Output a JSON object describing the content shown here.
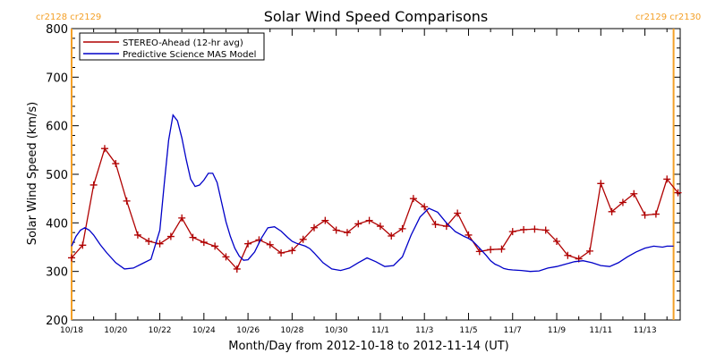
{
  "chart_data": {
    "type": "line",
    "title": "Solar Wind Speed Comparisons",
    "xlabel": "Month/Day from 2012-10-18 to 2012-11-14 (UT)",
    "ylabel": "Solar Wind Speed (km/s)",
    "xlim": [
      0,
      27.6
    ],
    "ylim": [
      200,
      800
    ],
    "x_unit": "days since 10/18 00:00 UT",
    "x_ticks": [
      0,
      2,
      4,
      6,
      8,
      10,
      12,
      14,
      16,
      18,
      20,
      22,
      24,
      26
    ],
    "x_tick_labels": [
      "10/18",
      "10/20",
      "10/22",
      "10/24",
      "10/26",
      "10/28",
      "10/30",
      "11/1",
      "11/3",
      "11/5",
      "11/7",
      "11/9",
      "11/11",
      "11/13"
    ],
    "y_ticks": [
      200,
      300,
      400,
      500,
      600,
      700,
      800
    ],
    "y_tick_labels": [
      "200",
      "300",
      "400",
      "500",
      "600",
      "700",
      "800"
    ],
    "legend_position": "top-left",
    "carrington_markers": [
      {
        "x": 0.0,
        "label": "cr2128 cr2129",
        "color": "#f4a027"
      },
      {
        "x": 27.3,
        "label": "cr2129 cr2130",
        "color": "#f4a027"
      }
    ],
    "series": [
      {
        "name": "STEREO-Ahead (12-hr avg)",
        "color": "#b00000",
        "marker": "plus",
        "x": [
          0.0,
          0.5,
          1.0,
          1.5,
          2.0,
          2.5,
          3.0,
          3.5,
          4.0,
          4.5,
          5.0,
          5.5,
          6.0,
          6.5,
          7.0,
          7.5,
          8.0,
          8.5,
          9.0,
          9.5,
          10.0,
          10.5,
          11.0,
          11.5,
          12.0,
          12.5,
          13.0,
          13.5,
          14.0,
          14.5,
          15.0,
          15.5,
          16.0,
          16.5,
          17.0,
          17.5,
          18.0,
          18.5,
          19.0,
          19.5,
          20.0,
          20.5,
          21.0,
          21.5,
          22.0,
          22.5,
          23.0,
          23.5,
          24.0,
          24.5,
          25.0,
          25.5,
          26.0,
          26.5,
          27.0,
          27.5
        ],
        "values": [
          328,
          354,
          478,
          553,
          522,
          445,
          375,
          362,
          357,
          372,
          410,
          370,
          360,
          352,
          330,
          305,
          357,
          365,
          355,
          338,
          343,
          366,
          390,
          405,
          385,
          380,
          398,
          405,
          393,
          373,
          388,
          450,
          433,
          397,
          393,
          420,
          375,
          341,
          345,
          346,
          382,
          386,
          387,
          385,
          362,
          333,
          326,
          342,
          481,
          423,
          442,
          460,
          416,
          418,
          490,
          462
        ]
      },
      {
        "name": "Predictive Science MAS Model",
        "color": "#0000c8",
        "marker": "none",
        "x": [
          0.0,
          0.2,
          0.4,
          0.6,
          0.8,
          1.0,
          1.3,
          1.6,
          2.0,
          2.4,
          2.8,
          3.2,
          3.6,
          4.0,
          4.2,
          4.4,
          4.6,
          4.8,
          5.0,
          5.2,
          5.4,
          5.6,
          5.8,
          6.0,
          6.2,
          6.4,
          6.6,
          6.8,
          7.0,
          7.2,
          7.4,
          7.6,
          7.8,
          8.0,
          8.3,
          8.6,
          8.9,
          9.2,
          9.5,
          9.8,
          10.0,
          10.2,
          10.4,
          10.6,
          10.8,
          11.0,
          11.4,
          11.8,
          12.2,
          12.6,
          13.0,
          13.4,
          13.8,
          14.2,
          14.6,
          15.0,
          15.4,
          15.8,
          16.2,
          16.6,
          17.0,
          17.4,
          17.8,
          18.0,
          18.2,
          18.4,
          18.6,
          18.8,
          19.0,
          19.2,
          19.4,
          19.6,
          19.8,
          20.0,
          20.4,
          20.8,
          21.2,
          21.6,
          22.0,
          22.4,
          22.8,
          23.2,
          23.6,
          24.0,
          24.4,
          24.8,
          25.2,
          25.6,
          26.0,
          26.4,
          26.8,
          27.0,
          27.2,
          27.3
        ],
        "values": [
          352,
          372,
          385,
          390,
          385,
          375,
          355,
          338,
          318,
          305,
          307,
          316,
          325,
          385,
          480,
          570,
          622,
          610,
          575,
          530,
          490,
          475,
          478,
          488,
          502,
          502,
          483,
          443,
          402,
          372,
          348,
          332,
          323,
          324,
          340,
          368,
          390,
          392,
          383,
          370,
          362,
          358,
          355,
          352,
          347,
          338,
          318,
          305,
          302,
          307,
          318,
          328,
          320,
          310,
          312,
          330,
          375,
          412,
          430,
          422,
          400,
          382,
          372,
          368,
          362,
          353,
          343,
          333,
          322,
          315,
          311,
          306,
          304,
          303,
          302,
          300,
          301,
          307,
          310,
          315,
          320,
          322,
          318,
          312,
          310,
          318,
          330,
          340,
          348,
          352,
          350,
          352,
          352,
          352
        ]
      }
    ]
  }
}
